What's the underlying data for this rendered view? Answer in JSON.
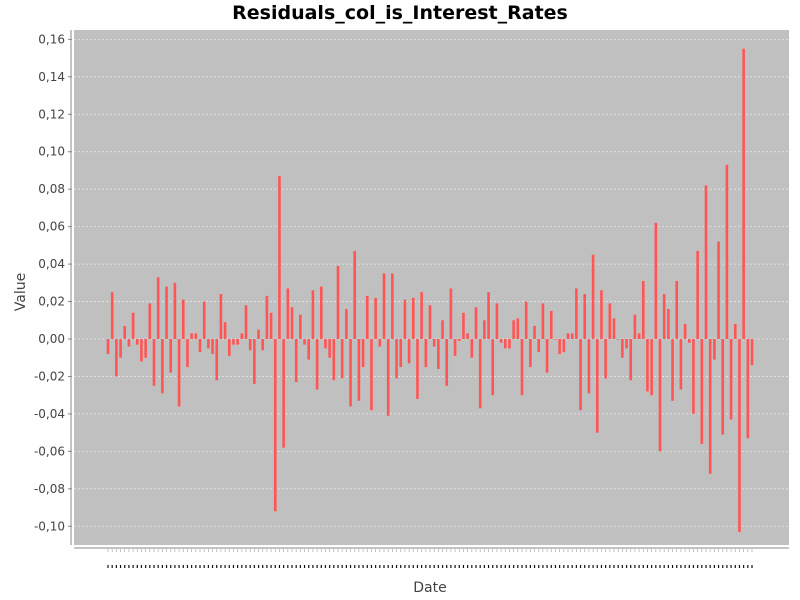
{
  "chart_data": {
    "type": "bar",
    "title": "Residuals_col_is_Interest_Rates",
    "xlabel": "Date",
    "ylabel": "Value",
    "ylim": [
      -0.11,
      0.165
    ],
    "y_ticks": [
      -0.1,
      -0.08,
      -0.06,
      -0.04,
      -0.02,
      0.0,
      0.02,
      0.04,
      0.06,
      0.08,
      0.1,
      0.12,
      0.14,
      0.16
    ],
    "y_tick_labels": [
      "-0,10",
      "-0,08",
      "-0,06",
      "-0,04",
      "-0,02",
      "0,00",
      "0,02",
      "0,04",
      "0,06",
      "0,08",
      "0,10",
      "0,12",
      "0,14",
      "0,16"
    ],
    "grid": true,
    "colors": {
      "bar": "#ff5555",
      "plot_background": "#c0c0c0",
      "grid": "#e6e6e6",
      "axis": "#888888"
    },
    "values": [
      -0.008,
      0.025,
      -0.02,
      -0.01,
      0.007,
      -0.004,
      0.014,
      -0.003,
      -0.012,
      -0.01,
      0.019,
      -0.025,
      0.033,
      -0.029,
      0.028,
      -0.018,
      0.03,
      -0.036,
      0.021,
      -0.015,
      0.003,
      0.003,
      -0.007,
      0.02,
      -0.005,
      -0.008,
      -0.022,
      0.024,
      0.009,
      -0.009,
      -0.003,
      -0.003,
      0.003,
      0.018,
      -0.006,
      -0.024,
      0.005,
      -0.006,
      0.023,
      0.014,
      -0.092,
      0.087,
      -0.058,
      0.027,
      0.017,
      -0.023,
      0.013,
      -0.003,
      -0.011,
      0.026,
      -0.027,
      0.028,
      -0.005,
      -0.01,
      -0.022,
      0.039,
      -0.021,
      0.016,
      -0.036,
      0.047,
      -0.033,
      -0.015,
      0.023,
      -0.038,
      0.022,
      -0.004,
      0.035,
      -0.041,
      0.035,
      -0.021,
      -0.015,
      0.021,
      -0.013,
      0.022,
      -0.032,
      0.025,
      -0.015,
      0.018,
      -0.004,
      -0.016,
      0.01,
      -0.025,
      0.027,
      -0.009,
      -0.001,
      0.014,
      0.003,
      -0.01,
      0.017,
      -0.037,
      0.01,
      0.025,
      -0.03,
      0.019,
      -0.002,
      -0.005,
      -0.005,
      0.01,
      0.011,
      -0.03,
      0.02,
      -0.015,
      0.007,
      -0.007,
      0.019,
      -0.018,
      0.015,
      0.0,
      -0.008,
      -0.007,
      0.003,
      0.003,
      0.027,
      -0.038,
      0.024,
      -0.029,
      0.045,
      -0.05,
      0.026,
      -0.021,
      0.019,
      0.011,
      0.0,
      -0.01,
      -0.005,
      -0.022,
      0.013,
      0.003,
      0.031,
      -0.028,
      -0.03,
      0.062,
      -0.06,
      0.024,
      0.016,
      -0.033,
      0.031,
      -0.027,
      0.008,
      -0.002,
      -0.04,
      0.047,
      -0.056,
      0.082,
      -0.072,
      -0.011,
      0.052,
      -0.051,
      0.093,
      -0.043,
      0.008,
      -0.103,
      0.155,
      -0.053,
      -0.014
    ]
  }
}
